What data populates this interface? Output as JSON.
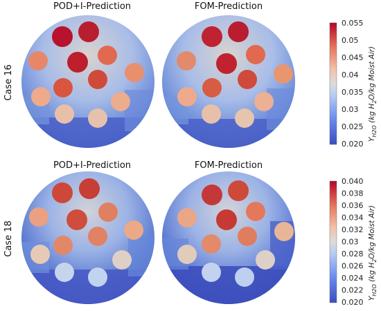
{
  "panels": {
    "top_left_title": "POD+I-Prediction",
    "top_right_title": "FOM-Prediction",
    "bottom_left_title": "POD+I-Prediction",
    "bottom_right_title": "FOM-Prediction"
  },
  "cases": {
    "top": "Case 16",
    "bottom": "Case 18"
  },
  "colorbars": [
    {
      "label_main": "Y",
      "label_sub": "H2O",
      "label_rest": " (kg H",
      "label_sub2": "2",
      "label_tail": "O/kg Moist Air)",
      "ticks": [
        "0.055",
        "0.05",
        "0.045",
        "0.04",
        "0.035",
        "0.03",
        "0.025",
        "0.020"
      ]
    },
    {
      "label_main": "Y",
      "label_sub": "H2O",
      "label_rest": " (kg H",
      "label_sub2": "2",
      "label_tail": "O/kg Moist Air)",
      "ticks": [
        "0.040",
        "0.038",
        "0.036",
        "0.034",
        "0.032",
        "0.03",
        "0.028",
        "0.026",
        "0.024",
        "0.022",
        "0.020"
      ]
    }
  ],
  "colors": {
    "high": "#b40426",
    "mid": "#dcdcdc",
    "low": "#3b4cc0"
  }
}
